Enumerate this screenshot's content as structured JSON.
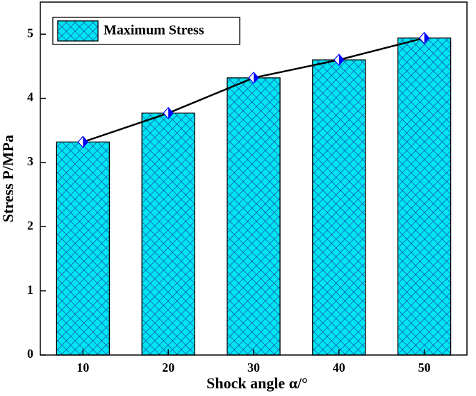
{
  "chart_data": {
    "type": "bar",
    "categories": [
      "10",
      "20",
      "30",
      "40",
      "50"
    ],
    "series": [
      {
        "name": "Maximum Stress",
        "color": "#00e5f0",
        "values": [
          3.32,
          3.77,
          4.32,
          4.6,
          4.94
        ]
      }
    ],
    "line_color": "#000000",
    "marker_color": "#0000ff",
    "xlabel": "Shock angle α/°",
    "ylabel": "Stress  P/MPa",
    "ylim": [
      0,
      5.5
    ],
    "yticks": [
      0,
      1,
      2,
      3,
      4,
      5
    ]
  }
}
